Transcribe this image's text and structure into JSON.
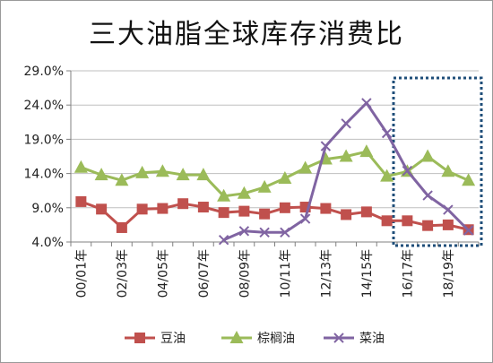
{
  "chart_data": {
    "type": "line",
    "title": "三大油脂全球库存消费比",
    "xlabel": "",
    "ylabel": "",
    "ylim": [
      0.04,
      0.29
    ],
    "yticks": [
      "4.0%",
      "9.0%",
      "14.0%",
      "19.0%",
      "24.0%",
      "29.0%"
    ],
    "grid": true,
    "legend_position": "bottom",
    "categories": [
      "00/01",
      "01/02",
      "02/03",
      "03/04",
      "04/05",
      "05/06",
      "06/07",
      "07/08",
      "08/09",
      "09/10",
      "10/11",
      "11/12",
      "12/13",
      "13/14",
      "14/15",
      "15/16",
      "16/17",
      "17/18",
      "18/19",
      "19/20"
    ],
    "tick_labels": [
      "00/01年",
      "02/03年",
      "04/05年",
      "06/07年",
      "08/09年",
      "10/11年",
      "12/13年",
      "14/15年",
      "16/17年",
      "18/19年"
    ],
    "tick_indices": [
      0,
      2,
      4,
      6,
      8,
      10,
      12,
      14,
      16,
      18
    ],
    "series": [
      {
        "name": "豆油",
        "color": "#c0504d",
        "marker": "square",
        "values": [
          0.099,
          0.088,
          0.061,
          0.088,
          0.089,
          0.096,
          0.091,
          0.083,
          0.085,
          0.081,
          0.09,
          0.091,
          0.089,
          0.08,
          0.084,
          0.071,
          0.071,
          0.064,
          0.065,
          0.058
        ]
      },
      {
        "name": "棕榈油",
        "color": "#9bbb59",
        "marker": "triangle",
        "values": [
          0.149,
          0.138,
          0.13,
          0.141,
          0.143,
          0.138,
          0.138,
          0.107,
          0.111,
          0.12,
          0.133,
          0.148,
          0.161,
          0.165,
          0.172,
          0.136,
          0.143,
          0.165,
          0.143,
          0.13
        ]
      },
      {
        "name": "菜油",
        "color": "#8064a2",
        "marker": "x",
        "values": [
          null,
          null,
          null,
          null,
          null,
          null,
          null,
          0.043,
          0.056,
          0.054,
          0.054,
          0.074,
          0.18,
          0.213,
          0.243,
          0.199,
          0.144,
          0.108,
          0.087,
          0.057
        ]
      }
    ],
    "highlight_box": {
      "start_index": 16,
      "end_index": 19,
      "color": "#1f4e79"
    }
  }
}
